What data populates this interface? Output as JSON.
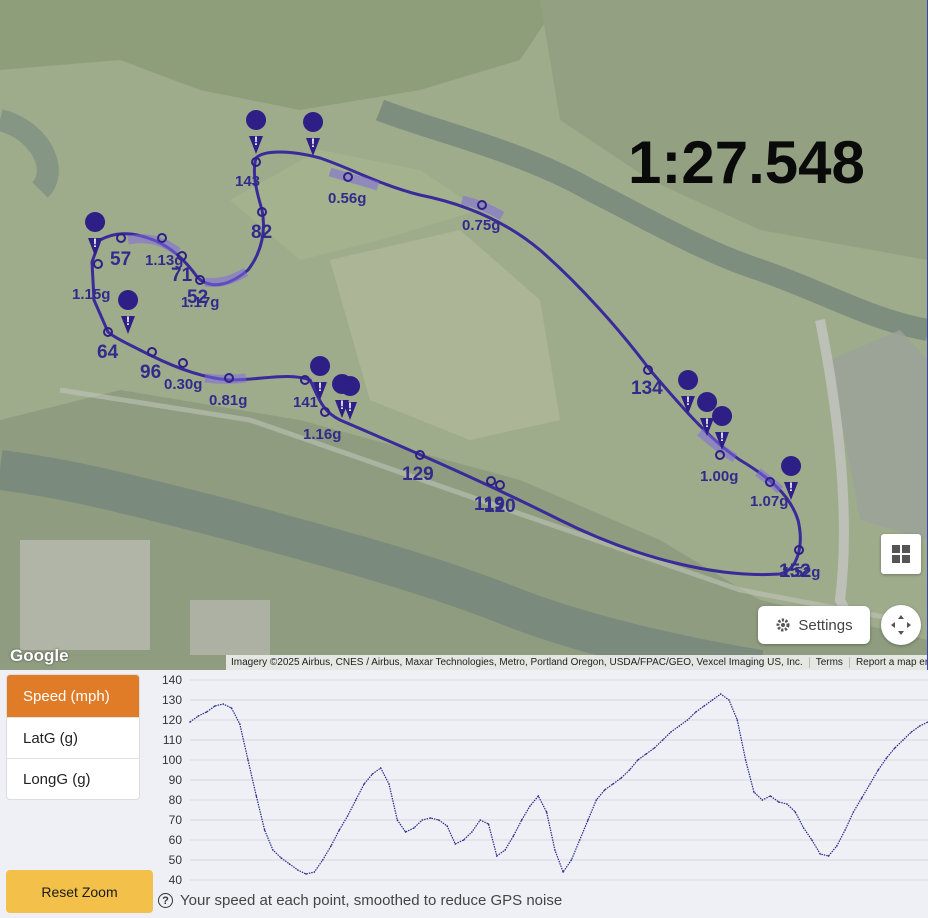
{
  "map": {
    "lap_time": "1:27.548",
    "google_logo": "Google",
    "attribution": "Imagery ©2025 Airbus, CNES / Airbus, Maxar Technologies, Metro, Portland Oregon, USDA/FPAC/GEO, Vexcel Imaging US, Inc.",
    "terms": "Terms",
    "report": "Report a map error",
    "settings_label": "Settings",
    "track_color": "#3a2a9a",
    "speed_labels": [
      "57",
      "71",
      "52",
      "82",
      "143",
      "64",
      "96",
      "141",
      "129",
      "119",
      "120",
      "134",
      "152"
    ],
    "g_labels": [
      "1.15g",
      "1.13g",
      "1.17g",
      "0.56g",
      "0.75g",
      "0.30g",
      "0.81g",
      "1.16g",
      "1.00g",
      "1.07g",
      "1.52g"
    ]
  },
  "metrics": {
    "tabs": [
      "Speed (mph)",
      "LatG (g)",
      "LongG (g)"
    ],
    "active": "Speed (mph)"
  },
  "controls": {
    "reset_zoom": "Reset Zoom"
  },
  "chart_caption": "Your speed at each point, smoothed to reduce GPS noise",
  "chart_data": {
    "type": "line",
    "title": "",
    "xlabel": "",
    "ylabel": "",
    "ylim": [
      40,
      140
    ],
    "yticks": [
      40,
      50,
      60,
      70,
      80,
      90,
      100,
      110,
      120,
      130,
      140
    ],
    "grid": true,
    "series": [
      {
        "color": "#2a2a8a",
        "values": [
          119,
          122,
          124,
          127,
          128,
          126,
          118,
          100,
          82,
          65,
          55,
          51,
          48,
          45,
          43,
          44,
          50,
          57,
          65,
          72,
          80,
          88,
          93,
          96,
          88,
          70,
          64,
          66,
          70,
          71,
          70,
          67,
          58,
          60,
          64,
          70,
          68,
          52,
          55,
          62,
          70,
          77,
          82,
          74,
          55,
          44,
          50,
          60,
          70,
          80,
          85,
          88,
          91,
          95,
          100,
          103,
          106,
          110,
          114,
          117,
          120,
          124,
          127,
          130,
          133,
          130,
          120,
          100,
          84,
          80,
          82,
          79,
          78,
          74,
          66,
          60,
          53,
          52,
          57,
          65,
          74,
          81,
          88,
          95,
          101,
          106,
          110,
          114,
          117,
          119
        ]
      }
    ]
  }
}
